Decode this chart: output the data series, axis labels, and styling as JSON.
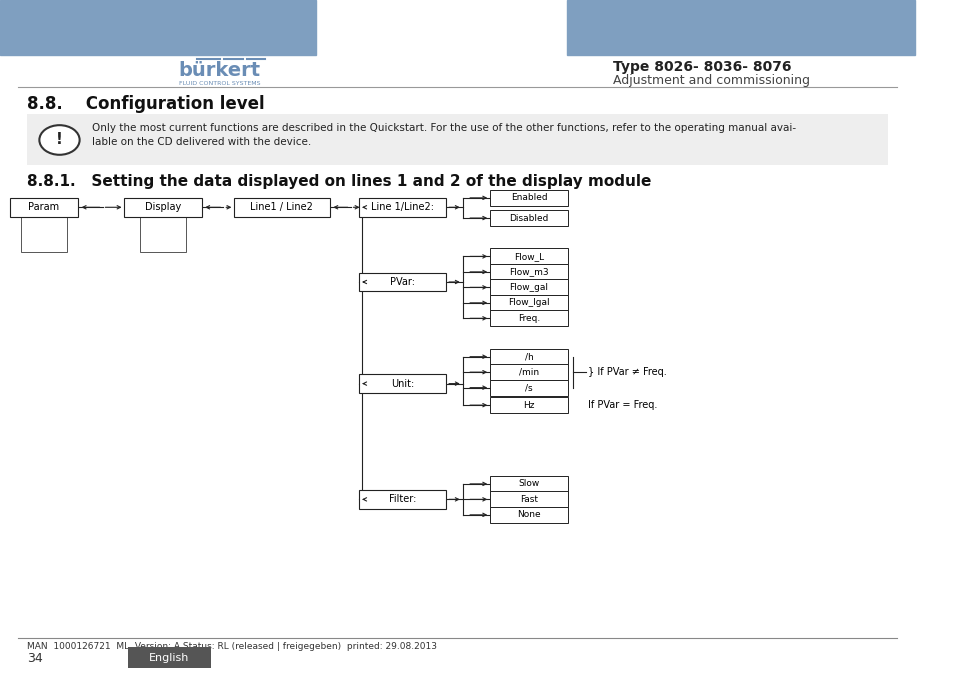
{
  "page_title": "Type 8026- 8036- 8076",
  "page_subtitle": "Adjustment and commissioning",
  "section_title": "8.8.    Configuration level",
  "subsection_title": "8.8.1.   Setting the data displayed on lines 1 and 2 of the display module",
  "warning_text": "Only the most current functions are described in the Quickstart. For the use of the other functions, refer to the operating manual avai-\nlable on the CD delivered with the device.",
  "footer_text": "MAN  1000126721  ML  Version: A Status: RL (released | freigegeben)  printed: 29.08.2013",
  "page_number": "34",
  "language": "English",
  "header_bar_color": "#7f9fc0",
  "bg_color": "#ffffff",
  "warning_bg": "#eeeeee",
  "lang_bg": "#555555",
  "lang_color": "#ffffff",
  "L4_positions": [
    [
      "Line 1/Line2:",
      0.692
    ],
    [
      "PVar:",
      0.581
    ],
    [
      "Unit:",
      0.43
    ],
    [
      "Filter:",
      0.258
    ]
  ],
  "en_dis": [
    [
      "Enabled",
      0.706
    ],
    [
      "Disabled",
      0.676
    ]
  ],
  "pvar_leaves": [
    [
      "Flow_L",
      0.619
    ],
    [
      "Flow_m3",
      0.596
    ],
    [
      "Flow_gal",
      0.573
    ],
    [
      "Flow_lgal",
      0.55
    ],
    [
      "Freq.",
      0.527
    ]
  ],
  "unit_leaves": [
    [
      "/h",
      0.47
    ],
    [
      "/min",
      0.447
    ],
    [
      "/s",
      0.424
    ],
    [
      "Hz",
      0.398
    ]
  ],
  "filter_leaves": [
    [
      "Slow",
      0.281
    ],
    [
      "Fast",
      0.258
    ],
    [
      "None",
      0.235
    ]
  ]
}
